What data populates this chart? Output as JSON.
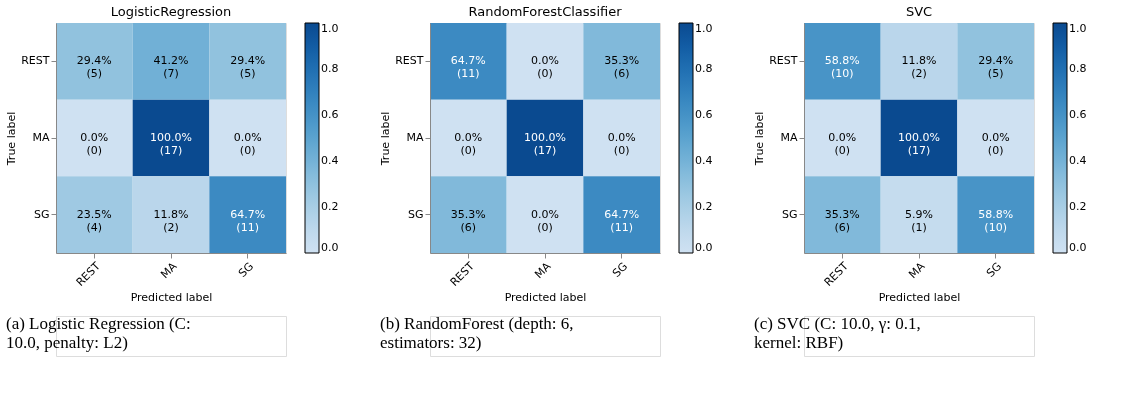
{
  "chart_data": [
    {
      "type": "heatmap",
      "title": "LogisticRegression",
      "xlabel": "Predicted label",
      "ylabel": "True label",
      "categories": [
        "REST",
        "MA",
        "SG"
      ],
      "y_categories": [
        "REST",
        "MA",
        "SG"
      ],
      "cells": [
        [
          0.294,
          0.412,
          0.294
        ],
        [
          0.0,
          1.0,
          0.0
        ],
        [
          0.235,
          0.118,
          0.647
        ]
      ],
      "cell_labels": [
        [
          "29.4%\n(5)",
          "41.2%\n(7)",
          "29.4%\n(5)"
        ],
        [
          "0.0%\n(0)",
          "100.0%\n(17)",
          "0.0%\n(0)"
        ],
        [
          "23.5%\n(4)",
          "11.8%\n(2)",
          "64.7%\n(11)"
        ]
      ],
      "clim": [
        0,
        1
      ],
      "cticks": [
        {
          "value": 0,
          "label": "0.0"
        },
        {
          "value": 0.2,
          "label": "0.2"
        },
        {
          "value": 0.4,
          "label": "0.4"
        },
        {
          "value": 0.6,
          "label": "0.6"
        },
        {
          "value": 0.8,
          "label": "0.8"
        },
        {
          "value": 1,
          "label": "1.0"
        }
      ],
      "annotations": [
        "(a) Logistic Regression (C: 10.0, penalty: L2)"
      ]
    },
    {
      "type": "heatmap",
      "title": "RandomForestClassifier",
      "xlabel": "Predicted label",
      "ylabel": "True label",
      "categories": [
        "REST",
        "MA",
        "SG"
      ],
      "y_categories": [
        "REST",
        "MA",
        "SG"
      ],
      "cells": [
        [
          0.647,
          0.0,
          0.353
        ],
        [
          0.0,
          1.0,
          0.0
        ],
        [
          0.353,
          0.0,
          0.647
        ]
      ],
      "cell_labels": [
        [
          "64.7%\n(11)",
          "0.0%\n(0)",
          "35.3%\n(6)"
        ],
        [
          "0.0%\n(0)",
          "100.0%\n(17)",
          "0.0%\n(0)"
        ],
        [
          "35.3%\n(6)",
          "0.0%\n(0)",
          "64.7%\n(11)"
        ]
      ],
      "clim": [
        0,
        1
      ],
      "cticks": [
        {
          "value": 0,
          "label": "0.0"
        },
        {
          "value": 0.2,
          "label": "0.2"
        },
        {
          "value": 0.4,
          "label": "0.4"
        },
        {
          "value": 0.6,
          "label": "0.6"
        },
        {
          "value": 0.8,
          "label": "0.8"
        },
        {
          "value": 1,
          "label": "1.0"
        }
      ],
      "annotations": [
        "(b) RandomForest (depth: 6, estimators: 32)"
      ]
    },
    {
      "type": "heatmap",
      "title": "SVC",
      "xlabel": "Predicted label",
      "ylabel": "True label",
      "categories": [
        "REST",
        "MA",
        "SG"
      ],
      "y_categories": [
        "REST",
        "MA",
        "SG"
      ],
      "cells": [
        [
          0.588,
          0.118,
          0.294
        ],
        [
          0.0,
          1.0,
          0.0
        ],
        [
          0.353,
          0.059,
          0.588
        ]
      ],
      "cell_labels": [
        [
          "58.8%\n(10)",
          "11.8%\n(2)",
          "29.4%\n(5)"
        ],
        [
          "0.0%\n(0)",
          "100.0%\n(17)",
          "0.0%\n(0)"
        ],
        [
          "35.3%\n(6)",
          "5.9%\n(1)",
          "58.8%\n(10)"
        ]
      ],
      "clim": [
        0,
        1
      ],
      "cticks": [
        {
          "value": 0,
          "label": "0.0"
        },
        {
          "value": 0.2,
          "label": "0.2"
        },
        {
          "value": 0.4,
          "label": "0.4"
        },
        {
          "value": 0.6,
          "label": "0.6"
        },
        {
          "value": 0.8,
          "label": "0.8"
        },
        {
          "value": 1,
          "label": "1.0"
        }
      ],
      "annotations": [
        "(c) SVC (C: 10.0, γ: 0.1, kernel: RBF)"
      ]
    }
  ]
}
